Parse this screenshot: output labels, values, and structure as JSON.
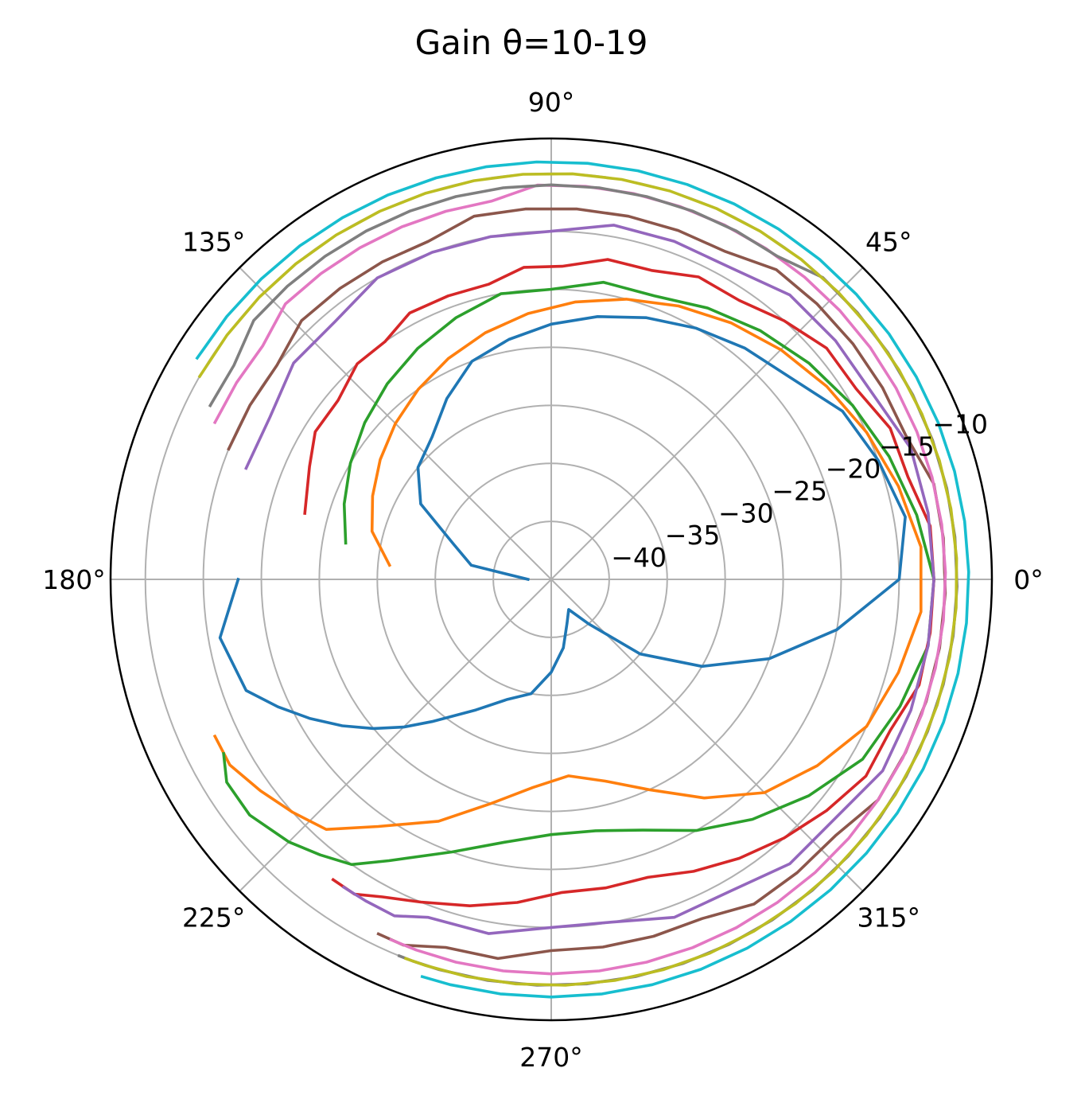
{
  "chart_data": {
    "type": "line",
    "projection": "polar",
    "title": "Gain θ=10-19",
    "angle_unit": "degrees",
    "theta_ticks": [
      0,
      45,
      90,
      135,
      180,
      225,
      270,
      315
    ],
    "theta_tick_labels": [
      "0°",
      "45°",
      "90°",
      "135°",
      "180°",
      "225°",
      "270°",
      "315°"
    ],
    "r_ticks": [
      -40,
      -35,
      -30,
      -25,
      -20,
      -15,
      -10
    ],
    "r_tick_labels": [
      "−40",
      "−35",
      "−30",
      "−25",
      "−20",
      "−15",
      "−10"
    ],
    "rlim": [
      -45,
      -7
    ],
    "grid": true,
    "legend": "none",
    "series": [
      {
        "color": "#1f77b4",
        "theta": [
          180,
          170,
          160,
          150,
          140,
          130,
          120,
          110,
          100,
          90,
          80,
          70,
          60,
          50,
          40,
          30,
          20,
          10,
          0,
          350,
          340,
          330,
          320,
          310,
          300,
          290,
          280,
          270,
          260,
          250,
          240,
          230,
          225,
          220,
          215,
          210,
          205,
          200,
          190,
          180
        ],
        "r": [
          -43,
          -38,
          -36,
          -32,
          -30,
          -29,
          -27,
          -25,
          -24,
          -23,
          -22,
          -21,
          -20,
          -19,
          -18,
          -16,
          -15,
          -14,
          -15,
          -20,
          -25,
          -30,
          -35,
          -40,
          -42,
          -41,
          -39,
          -37,
          -35,
          -34,
          -32,
          -29,
          -27,
          -25,
          -23,
          -21,
          -19,
          -17,
          -16,
          -18
        ]
      },
      {
        "color": "#ff7f0e",
        "theta": [
          175,
          165,
          155,
          145,
          135,
          125,
          115,
          105,
          95,
          85,
          75,
          65,
          55,
          45,
          35,
          25,
          15,
          5,
          355,
          345,
          335,
          325,
          315,
          305,
          295,
          285,
          275,
          265,
          255,
          245,
          235,
          228,
          222,
          216,
          210,
          205
        ],
        "r": [
          -31,
          -29,
          -28,
          -27,
          -26,
          -25,
          -24,
          -23,
          -22,
          -21,
          -20,
          -19,
          -18,
          -17,
          -16,
          -15,
          -14,
          -13,
          -13,
          -14,
          -15,
          -17,
          -19,
          -22,
          -25,
          -27,
          -28,
          -27,
          -25,
          -22,
          -19,
          -16,
          -15,
          -14,
          -13,
          -13
        ]
      },
      {
        "color": "#2ca02c",
        "theta": [
          170,
          160,
          150,
          140,
          130,
          120,
          110,
          100,
          90,
          80,
          70,
          60,
          50,
          40,
          30,
          20,
          10,
          0,
          350,
          340,
          330,
          320,
          310,
          300,
          290,
          280,
          270,
          260,
          250,
          240,
          235,
          230,
          225,
          218,
          212,
          208
        ],
        "r": [
          -27,
          -26,
          -25,
          -24,
          -23,
          -22,
          -21,
          -20,
          -20,
          -19,
          -19,
          -18,
          -17,
          -16,
          -15,
          -14,
          -13,
          -12,
          -12,
          -13,
          -14,
          -16,
          -18,
          -20,
          -22,
          -23,
          -23,
          -22,
          -20,
          -17,
          -15,
          -14,
          -13,
          -12,
          -12,
          -13
        ]
      },
      {
        "color": "#d62728",
        "theta": [
          165,
          155,
          148,
          140,
          132,
          125,
          118,
          110,
          102,
          95,
          88,
          80,
          72,
          64,
          56,
          48,
          40,
          32,
          24,
          16,
          8,
          0,
          352,
          344,
          336,
          328,
          320,
          312,
          304,
          296,
          288,
          280,
          272,
          264,
          256,
          248,
          242,
          238,
          234
        ],
        "r": [
          -23,
          -22,
          -21,
          -21,
          -20,
          -20,
          -19,
          -19,
          -19,
          -18,
          -18,
          -17,
          -17,
          -16,
          -16,
          -15,
          -14,
          -14,
          -13,
          -13,
          -12,
          -12,
          -12,
          -12,
          -13,
          -13,
          -14,
          -15,
          -16,
          -17,
          -18,
          -18,
          -18,
          -17,
          -16,
          -15,
          -14,
          -13,
          -13
        ]
      },
      {
        "color": "#9467bd",
        "theta": [
          160,
          150,
          140,
          130,
          120,
          110,
          100,
          90,
          80,
          70,
          60,
          50,
          40,
          30,
          20,
          10,
          0,
          350,
          340,
          330,
          320,
          310,
          300,
          290,
          280,
          270,
          260,
          250,
          245,
          240,
          236
        ],
        "r": [
          -17,
          -17,
          -16,
          -16,
          -15,
          -15,
          -15,
          -15,
          -14,
          -14,
          -14,
          -13,
          -13,
          -13,
          -12,
          -12,
          -12,
          -12,
          -12,
          -12,
          -13,
          -13,
          -14,
          -14,
          -15,
          -15,
          -14,
          -14,
          -13,
          -13,
          -13
        ]
      },
      {
        "color": "#8c564b",
        "theta": [
          158,
          150,
          142,
          134,
          126,
          118,
          110,
          102,
          94,
          86,
          78,
          70,
          62,
          54,
          46,
          38,
          30,
          22,
          14,
          6,
          358,
          350,
          342,
          334,
          326,
          318,
          310,
          302,
          294,
          286,
          278,
          270,
          262,
          254,
          248,
          244
        ],
        "r": [
          -15,
          -15,
          -15,
          -14,
          -14,
          -14,
          -14,
          -13,
          -13,
          -13,
          -13,
          -13,
          -13,
          -12,
          -12,
          -12,
          -12,
          -12,
          -11,
          -11,
          -11,
          -11,
          -11,
          -11,
          -11,
          -12,
          -12,
          -12,
          -13,
          -13,
          -13,
          -13,
          -12,
          -12,
          -11,
          -11
        ]
      },
      {
        "color": "#e377c2",
        "theta": [
          155,
          148,
          141,
          134,
          127,
          120,
          113,
          106,
          99,
          92,
          85,
          78,
          71,
          64,
          57,
          50,
          43,
          36,
          29,
          22,
          15,
          8,
          1,
          354,
          347,
          340,
          333,
          326,
          319,
          312,
          305,
          298,
          291,
          284,
          277,
          270,
          263,
          256,
          250,
          246
        ],
        "r": [
          -13,
          -13,
          -13,
          -12,
          -12,
          -12,
          -12,
          -12,
          -12,
          -11,
          -11,
          -11,
          -11,
          -11,
          -11,
          -11,
          -11,
          -11,
          -11,
          -11,
          -11,
          -11,
          -11,
          -11,
          -11,
          -11,
          -11,
          -11,
          -11,
          -11,
          -11,
          -11,
          -11,
          -11,
          -11,
          -11,
          -11,
          -11,
          -11,
          -11
        ]
      },
      {
        "color": "#7f7f7f",
        "theta": [
          153,
          146,
          139,
          132,
          125,
          118,
          111,
          104,
          97,
          90,
          83,
          76,
          69,
          62,
          55,
          48,
          41,
          34,
          27,
          20,
          13,
          6,
          359,
          352,
          345,
          338,
          331,
          324,
          317,
          310,
          303,
          296,
          289,
          282,
          275,
          268,
          261,
          254,
          250,
          248
        ],
        "r": [
          -12,
          -12,
          -11,
          -11,
          -11,
          -11,
          -11,
          -11,
          -11,
          -11,
          -11,
          -11,
          -11,
          -11,
          -11,
          -10,
          -10,
          -10,
          -10,
          -10,
          -10,
          -10,
          -10,
          -10,
          -10,
          -10,
          -10,
          -10,
          -10,
          -10,
          -10,
          -10,
          -10,
          -10,
          -10,
          -10,
          -10,
          -10,
          -10,
          -10
        ]
      },
      {
        "color": "#bcbd22",
        "theta": [
          150,
          143,
          136,
          129,
          122,
          115,
          108,
          101,
          94,
          87,
          80,
          73,
          66,
          59,
          52,
          45,
          38,
          31,
          24,
          17,
          10,
          3,
          356,
          349,
          342,
          335,
          328,
          321,
          314,
          307,
          300,
          293,
          286,
          279,
          272,
          265,
          258,
          252,
          249
        ],
        "r": [
          -10,
          -10,
          -10,
          -10,
          -10,
          -10,
          -10,
          -10,
          -10,
          -10,
          -10,
          -10,
          -10,
          -10,
          -10,
          -10,
          -10,
          -10,
          -10,
          -10,
          -10,
          -10,
          -10,
          -10,
          -10,
          -10,
          -10,
          -10,
          -10,
          -10,
          -10,
          -10,
          -10,
          -10,
          -10,
          -10,
          -10,
          -10,
          -10
        ]
      },
      {
        "color": "#17becf",
        "theta": [
          148,
          141,
          134,
          127,
          120,
          113,
          106,
          99,
          92,
          85,
          78,
          71,
          64,
          57,
          50,
          43,
          36,
          29,
          22,
          15,
          8,
          1,
          354,
          347,
          340,
          333,
          326,
          319,
          312,
          305,
          298,
          291,
          284,
          277,
          270,
          263,
          256,
          252
        ],
        "r": [
          -9,
          -9,
          -9,
          -9,
          -9,
          -9,
          -9,
          -9,
          -9,
          -9,
          -9,
          -9,
          -9,
          -9,
          -9,
          -9,
          -9,
          -9,
          -9,
          -9,
          -9,
          -9,
          -9,
          -9,
          -9,
          -9,
          -9,
          -9,
          -9,
          -9,
          -9,
          -9,
          -9,
          -9,
          -9,
          -9,
          -9,
          -9
        ]
      }
    ]
  }
}
